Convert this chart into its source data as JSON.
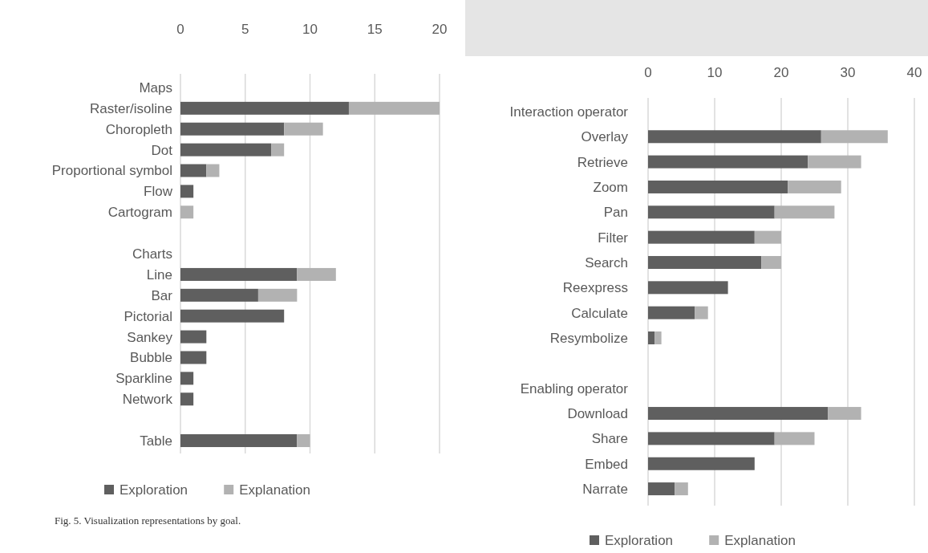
{
  "chart_data": [
    {
      "type": "bar",
      "orientation": "horizontal",
      "stacked": true,
      "categories": [
        "Maps",
        "Raster/isoline",
        "Choropleth",
        "Dot",
        "Proportional symbol",
        "Flow",
        "Cartogram",
        null,
        "Charts",
        "Line",
        "Bar",
        "Pictorial",
        "Sankey",
        "Bubble",
        "Sparkline",
        "Network",
        null,
        "Table"
      ],
      "series": [
        {
          "name": "Exploration",
          "color": "#5f5f5f",
          "values": [
            null,
            13,
            8,
            7,
            2,
            1,
            0,
            null,
            null,
            9,
            6,
            8,
            2,
            2,
            1,
            1,
            null,
            9
          ]
        },
        {
          "name": "Explanation",
          "color": "#b2b2b2",
          "values": [
            null,
            7,
            3,
            1,
            1,
            0,
            1,
            null,
            null,
            3,
            3,
            0,
            0,
            0,
            0,
            0,
            null,
            1
          ]
        }
      ],
      "xlim": [
        0,
        20
      ],
      "xticks": [
        0,
        5,
        10,
        15,
        20
      ],
      "grid": "x",
      "legend": "bottom",
      "annotations": [
        "Fig. 5. Visualization representations by goal."
      ]
    },
    {
      "type": "bar",
      "orientation": "horizontal",
      "stacked": true,
      "categories": [
        "Interaction operator",
        "Overlay",
        "Retrieve",
        "Zoom",
        "Pan",
        "Filter",
        "Search",
        "Reexpress",
        "Calculate",
        "Resymbolize",
        null,
        "Enabling operator",
        "Download",
        "Share",
        "Embed",
        "Narrate"
      ],
      "series": [
        {
          "name": "Exploration",
          "color": "#5f5f5f",
          "values": [
            null,
            26,
            24,
            21,
            19,
            16,
            17,
            12,
            7,
            1,
            null,
            null,
            27,
            19,
            16,
            4
          ]
        },
        {
          "name": "Explanation",
          "color": "#b2b2b2",
          "values": [
            null,
            10,
            8,
            8,
            9,
            4,
            3,
            0,
            2,
            1,
            null,
            null,
            5,
            6,
            0,
            2
          ]
        }
      ],
      "xlim": [
        0,
        40
      ],
      "xticks": [
        0,
        10,
        20,
        30,
        40
      ],
      "grid": "x",
      "legend": "bottom"
    }
  ]
}
